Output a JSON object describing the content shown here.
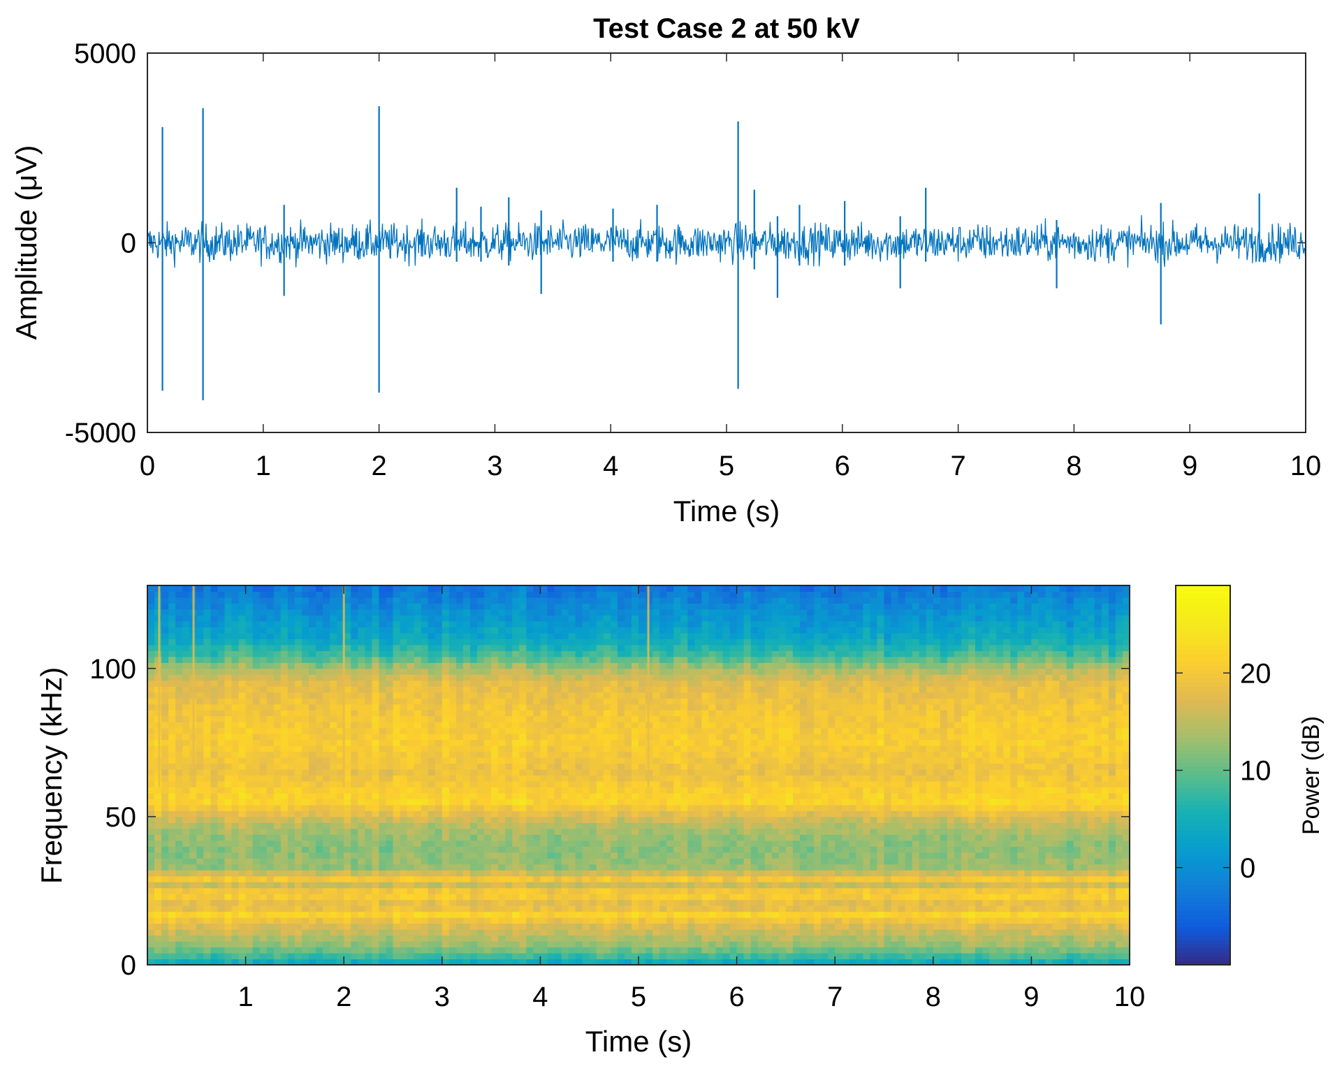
{
  "chart_data": [
    {
      "type": "line",
      "title": "Test Case 2 at 50 kV",
      "xlabel": "Time (s)",
      "ylabel": "Amplitude (μV)",
      "xlim": [
        0,
        10
      ],
      "ylim": [
        -5000,
        5000
      ],
      "xticks": [
        "0",
        "1",
        "2",
        "3",
        "4",
        "5",
        "6",
        "7",
        "8",
        "9",
        "10"
      ],
      "yticks": [
        "-5000",
        "0",
        "5000"
      ],
      "grid": false,
      "line_color": "#0072BD",
      "noise_band": {
        "typical_amplitude": 450,
        "peak_amplitude": 800
      },
      "spikes": [
        {
          "t": 0.13,
          "high": 3050,
          "low": -3900
        },
        {
          "t": 0.48,
          "high": 3550,
          "low": -4150
        },
        {
          "t": 1.18,
          "high": 1000,
          "low": -1400
        },
        {
          "t": 2.0,
          "high": 3600,
          "low": -3950
        },
        {
          "t": 2.67,
          "high": 1450,
          "low": -500
        },
        {
          "t": 2.88,
          "high": 950,
          "low": -500
        },
        {
          "t": 3.12,
          "high": 1200,
          "low": -600
        },
        {
          "t": 3.4,
          "high": 850,
          "low": -1350
        },
        {
          "t": 4.02,
          "high": 900,
          "low": -500
        },
        {
          "t": 4.4,
          "high": 1000,
          "low": -500
        },
        {
          "t": 5.1,
          "high": 3200,
          "low": -3850
        },
        {
          "t": 5.24,
          "high": 1400,
          "low": -700
        },
        {
          "t": 5.44,
          "high": 700,
          "low": -1450
        },
        {
          "t": 5.63,
          "high": 1000,
          "low": -600
        },
        {
          "t": 6.02,
          "high": 1100,
          "low": -600
        },
        {
          "t": 6.5,
          "high": 700,
          "low": -1200
        },
        {
          "t": 6.72,
          "high": 1450,
          "low": -500
        },
        {
          "t": 7.85,
          "high": 600,
          "low": -1200
        },
        {
          "t": 8.75,
          "high": 1050,
          "low": -2150
        },
        {
          "t": 9.6,
          "high": 1300,
          "low": -500
        }
      ]
    },
    {
      "type": "heatmap",
      "xlabel": "Time (s)",
      "ylabel": "Frequency (kHz)",
      "xlim": [
        0,
        10
      ],
      "ylim": [
        0,
        128
      ],
      "xticks": [
        "1",
        "2",
        "3",
        "4",
        "5",
        "6",
        "7",
        "8",
        "9",
        "10"
      ],
      "yticks": [
        "0",
        "50",
        "100"
      ],
      "colormap": "parula",
      "colorbar": {
        "label": "Power (dB)",
        "ticks": [
          "0",
          "10",
          "20"
        ],
        "range": [
          -10,
          29
        ]
      },
      "band_profile": [
        {
          "f": 0,
          "power": 3
        },
        {
          "f": 2,
          "power": 7
        },
        {
          "f": 6,
          "power": 12
        },
        {
          "f": 10,
          "power": 15
        },
        {
          "f": 14,
          "power": 18
        },
        {
          "f": 17,
          "power": 22
        },
        {
          "f": 20,
          "power": 17
        },
        {
          "f": 24,
          "power": 22
        },
        {
          "f": 27,
          "power": 16
        },
        {
          "f": 29,
          "power": 20
        },
        {
          "f": 33,
          "power": 13
        },
        {
          "f": 40,
          "power": 12
        },
        {
          "f": 46,
          "power": 14
        },
        {
          "f": 50,
          "power": 17
        },
        {
          "f": 55,
          "power": 22
        },
        {
          "f": 60,
          "power": 21
        },
        {
          "f": 65,
          "power": 19
        },
        {
          "f": 75,
          "power": 21
        },
        {
          "f": 85,
          "power": 20
        },
        {
          "f": 95,
          "power": 18
        },
        {
          "f": 100,
          "power": 14
        },
        {
          "f": 104,
          "power": 9
        },
        {
          "f": 110,
          "power": 4
        },
        {
          "f": 118,
          "power": 1
        },
        {
          "f": 128,
          "power": -3
        }
      ],
      "impulse_times": [
        0.12,
        0.47,
        2.0,
        5.1
      ]
    }
  ]
}
